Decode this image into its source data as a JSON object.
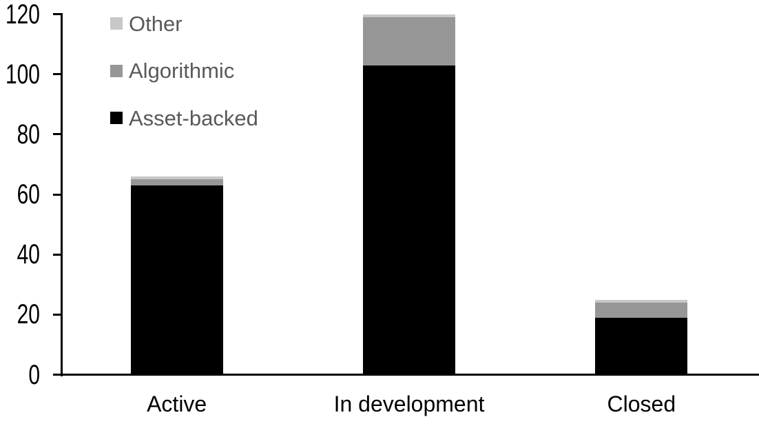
{
  "chart_data": {
    "type": "bar",
    "stacked": true,
    "title": "",
    "xlabel": "",
    "ylabel": "",
    "categories": [
      "Active",
      "In development",
      "Closed"
    ],
    "series": [
      {
        "name": "Asset-backed",
        "color": "#000000",
        "values": [
          63,
          103,
          19
        ]
      },
      {
        "name": "Algorithmic",
        "color": "#969696",
        "values": [
          2,
          16,
          5
        ]
      },
      {
        "name": "Other",
        "color": "#c8c8c8",
        "values": [
          1,
          1,
          1
        ]
      }
    ],
    "totals": [
      66,
      120,
      25
    ],
    "ylim": [
      0,
      120
    ],
    "yticks": [
      0,
      20,
      40,
      60,
      80,
      100,
      120
    ],
    "grid": false,
    "legend_position": "top-left",
    "legend_order": [
      "Other",
      "Algorithmic",
      "Asset-backed"
    ],
    "legend_text_color": "#595959",
    "axis_color": "#000000",
    "label_color": "#000000",
    "background_color": "#ffffff"
  }
}
